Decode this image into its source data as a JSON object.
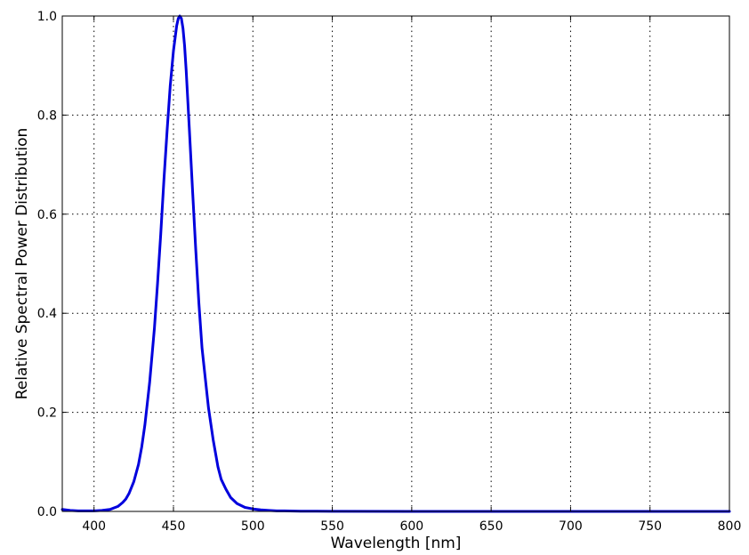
{
  "chart_data": {
    "type": "line",
    "title": "",
    "xlabel": "Wavelength [nm]",
    "ylabel": "Relative Spectral Power Distribution",
    "xlim": [
      380,
      800
    ],
    "ylim": [
      0.0,
      1.0
    ],
    "x_ticks": [
      400,
      450,
      500,
      550,
      600,
      650,
      700,
      750,
      800
    ],
    "x_tick_labels": [
      "400",
      "450",
      "500",
      "550",
      "600",
      "650",
      "700",
      "750",
      "800"
    ],
    "y_ticks": [
      0.0,
      0.2,
      0.4,
      0.6,
      0.8,
      1.0
    ],
    "y_tick_labels": [
      "0.0",
      "0.2",
      "0.4",
      "0.6",
      "0.8",
      "1.0"
    ],
    "grid": true,
    "line_color": "#0000dd",
    "series": [
      {
        "x": [
          380,
          385,
          390,
          395,
          400,
          405,
          410,
          415,
          418,
          420,
          422,
          425,
          428,
          430,
          432,
          435,
          438,
          440,
          442,
          444,
          446,
          448,
          450,
          452,
          453,
          454,
          455,
          456,
          457,
          458,
          460,
          462,
          464,
          466,
          468,
          470,
          472,
          475,
          478,
          480,
          483,
          486,
          490,
          495,
          500,
          505,
          510,
          515,
          520,
          530,
          540,
          550,
          600,
          650,
          700,
          750,
          800
        ],
        "y": [
          0.004,
          0.002,
          0.001,
          0.001,
          0.001,
          0.002,
          0.004,
          0.01,
          0.018,
          0.025,
          0.036,
          0.06,
          0.095,
          0.13,
          0.175,
          0.26,
          0.37,
          0.46,
          0.56,
          0.67,
          0.77,
          0.86,
          0.93,
          0.98,
          0.995,
          1.0,
          0.995,
          0.975,
          0.94,
          0.89,
          0.77,
          0.65,
          0.53,
          0.42,
          0.33,
          0.27,
          0.21,
          0.145,
          0.09,
          0.065,
          0.045,
          0.028,
          0.016,
          0.008,
          0.005,
          0.003,
          0.002,
          0.001,
          0.001,
          0.0005,
          0.0003,
          0.0002,
          0,
          0,
          0,
          0,
          0
        ]
      }
    ]
  }
}
